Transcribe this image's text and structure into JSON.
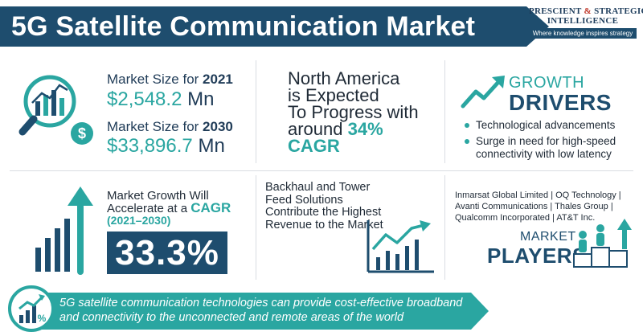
{
  "header": {
    "title": "5G Satellite Communication Market",
    "logo": {
      "line1_a": "PRESCIENT",
      "line1_amp": "&",
      "line1_b": "STRATEGIC",
      "line2": "INTELLIGENCE",
      "tagline": "Where knowledge inspires strategy"
    }
  },
  "market_size": {
    "label_2021_prefix": "Market Size for ",
    "year_2021": "2021",
    "value_2021": "$2,548.2",
    "unit_2021": "Mn",
    "label_2030_prefix": "Market Size for ",
    "year_2030": "2030",
    "value_2030": "$33,896.7",
    "unit_2030": "Mn"
  },
  "north_america": {
    "line1": "North America",
    "line2": "is Expected",
    "line3": "To Progress with",
    "line4": "around ",
    "percent": "34%",
    "cagr": "CAGR"
  },
  "growth_drivers": {
    "title1": "GROWTH",
    "title2": "DRIVERS",
    "items": [
      "Technological advancements",
      "Surge in need for high-speed connectivity with low latency"
    ]
  },
  "cagr": {
    "line1": "Market Growth Will",
    "line2_prefix": "Accelerate at a ",
    "line2_hl": "CAGR",
    "period": "(2021–2030)",
    "value": "33.3%"
  },
  "backhaul": {
    "text": "Backhaul and Tower Feed Solutions Contribute the Highest Revenue to the Market"
  },
  "players": {
    "list": "Inmarsat Global Limited | OQ Technology | Avanti Communications | Thales Group | Qualcomm Incorporated | AT&T Inc.",
    "title1": "MARKET",
    "title2": "PLAYERS"
  },
  "footer": {
    "text": "5G satellite communication technologies can provide cost-effective broadband and connectivity to the unconnected and remote areas of the world"
  },
  "colors": {
    "navy": "#1e4d6e",
    "teal": "#2aa6a1"
  },
  "icons": {
    "market_size": "magnifier-chart-dollar-icon",
    "growth": "growth-arrow-icon",
    "cagr": "rising-bars-arrow-icon",
    "backhaul": "line-chart-icon",
    "players": "people-podium-icon",
    "footer": "percent-growth-icon"
  }
}
